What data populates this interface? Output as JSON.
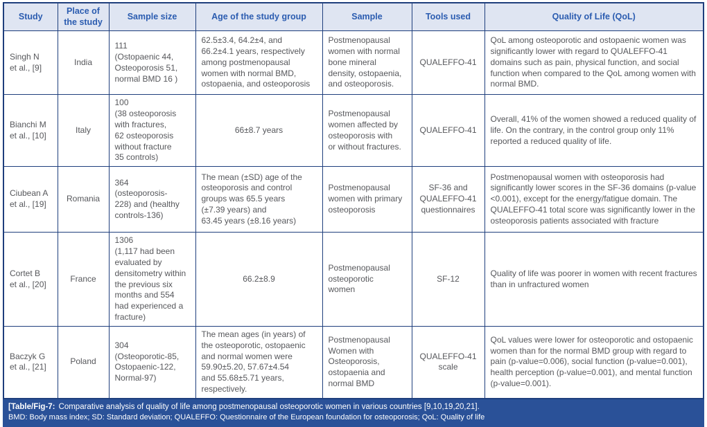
{
  "colors": {
    "border": "#1e3e7c",
    "header_bg": "#dfe5f2",
    "header_text": "#2b5cb0",
    "caption_bg": "#2a5198",
    "caption_text": "#ffffff",
    "body_text": "#56575b",
    "page_bg": "#ffffff"
  },
  "table": {
    "columns": [
      {
        "key": "study",
        "label": "Study",
        "align": "left"
      },
      {
        "key": "place",
        "label": "Place of\nthe study",
        "align": "center"
      },
      {
        "key": "sample-size",
        "label": "Sample size",
        "align": "left"
      },
      {
        "key": "age",
        "label": "Age of the study group",
        "align": "left"
      },
      {
        "key": "sample",
        "label": "Sample",
        "align": "left"
      },
      {
        "key": "tools",
        "label": "Tools used",
        "align": "center"
      },
      {
        "key": "qol",
        "label": "Quality of Life (QoL)",
        "align": "left"
      }
    ],
    "rows": [
      {
        "cells": [
          "Singh N\net al., [9]",
          "India",
          "111\n(Ostopaenic 44,\nOsteoporosis 51,\nnormal BMD 16 )",
          "62.5±3.4, 64.2±4, and\n66.2±4.1 years, respectively\namong postmenopausal\nwomen with normal BMD,\nostopaenia, and osteoporosis",
          "Postmenopausal\nwomen with normal\nbone mineral\ndensity, ostopaenia,\nand osteoporosis.",
          "QUALEFFO-41",
          "QoL among osteoporotic and ostopaenic women was significantly lower with regard to QUALEFFO-41 domains such as pain, physical function, and social function when compared to the QoL among women with normal BMD."
        ]
      },
      {
        "cells": [
          "Bianchi M\net al., [10]",
          "Italy",
          "100\n(38 osteoporosis\nwith fractures,\n62 osteoporosis\nwithout fracture\n35 controls)",
          {
            "text": "66±8.7 years",
            "align": "center"
          },
          "Postmenopausal\nwomen affected by\nosteoporosis with\nor without fractures.",
          "QUALEFFO-41",
          "Overall, 41% of the women showed a reduced quality of life. On the contrary, in the control group only 11% reported a reduced quality of life."
        ]
      },
      {
        "cells": [
          "Ciubean A\net al., [19]",
          "Romania",
          "364\n(osteoporosis-\n228) and (healthy\ncontrols-136)",
          "The mean (±SD) age of the\nosteoporosis and control\ngroups was 65.5 years\n(±7.39 years) and\n63.45 years (±8.16 years)",
          "Postmenopausal\nwomen with primary\nosteoporosis",
          "SF-36 and\nQUALEFFO-41\nquestionnaires",
          "Postmenopausal women with osteoporosis had significantly lower scores in the SF-36 domains (p-value <0.001), except for the energy/fatigue domain. The QUALEFFO-41 total score was significantly lower in the osteoporosis patients associated with fracture"
        ]
      },
      {
        "cells": [
          "Cortet B\net al., [20]",
          "France",
          "1306\n(1,117 had been\nevaluated by\ndensitometry within\nthe previous six\nmonths and 554\nhad experienced a\nfracture)",
          {
            "text": "66.2±8.9",
            "align": "center"
          },
          "Postmenopausal\nosteoporotic\nwomen",
          "SF-12",
          "Quality of life was poorer in women with recent fractures than in unfractured women"
        ]
      },
      {
        "cells": [
          "Baczyk G\net al., [21]",
          "Poland",
          "304\n(Osteoporotic-85,\nOstopaenic-122,\nNormal-97)",
          "The mean ages (in years) of\nthe osteoporotic, ostopaenic\nand normal women were\n59.90±5.20, 57.67±4.54\nand 55.68±5.71 years,\nrespectively.",
          "Postmenopausal\nWomen with\nOsteoporosis,\nostopaenia and\nnormal BMD",
          "QUALEFFO-41\nscale",
          "QoL values were lower for osteoporotic and ostopaenic women than for the normal BMD group with regard to pain (p-value=0.006), social function (p-value=0.001), health perception (p-value=0.001), and mental function (p-value=0.001)."
        ]
      }
    ]
  },
  "caption": {
    "label": "[Table/Fig-7:",
    "text": "Comparative analysis of quality of life among postmenopausal osteoporotic women in various countries [9,10,19,20,21].",
    "abbreviations": "BMD: Body mass index; SD: Standard deviation; QUALEFFO: Questionnaire of the European foundation for osteoporosis; QoL: Quality of life"
  }
}
